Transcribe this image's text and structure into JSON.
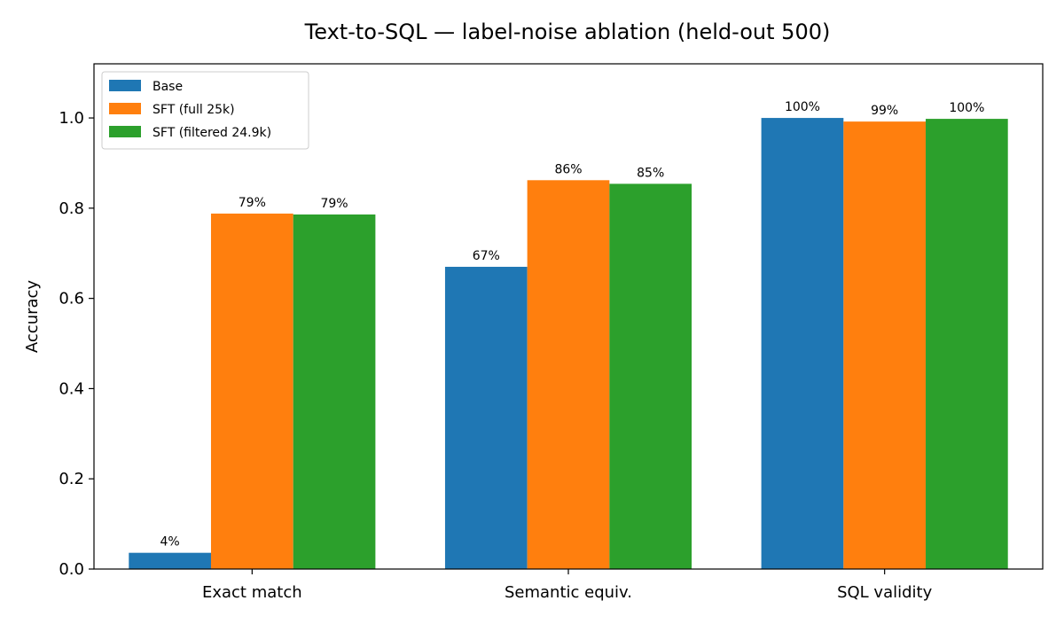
{
  "chart_data": {
    "type": "bar",
    "title": "Text-to-SQL — label-noise ablation (held-out 500)",
    "xlabel": "",
    "ylabel": "Accuracy",
    "categories": [
      "Exact match",
      "Semantic equiv.",
      "SQL validity"
    ],
    "series": [
      {
        "name": "Base",
        "color": "#1f77b4",
        "values": [
          0.036,
          0.67,
          1.0
        ],
        "labels": [
          "4%",
          "67%",
          "100%"
        ]
      },
      {
        "name": "SFT (full 25k)",
        "color": "#ff7f0e",
        "values": [
          0.788,
          0.862,
          0.992
        ],
        "labels": [
          "79%",
          "86%",
          "99%"
        ]
      },
      {
        "name": "SFT (filtered 24.9k)",
        "color": "#2ca02c",
        "values": [
          0.786,
          0.854,
          0.998
        ],
        "labels": [
          "79%",
          "85%",
          "100%"
        ]
      }
    ],
    "ylim": [
      0,
      1.12
    ],
    "yticks": [
      0.0,
      0.2,
      0.4,
      0.6,
      0.8,
      1.0
    ],
    "ytick_labels": [
      "0.0",
      "0.2",
      "0.4",
      "0.6",
      "0.8",
      "1.0"
    ],
    "grid": false,
    "legend_position": "top-left"
  }
}
